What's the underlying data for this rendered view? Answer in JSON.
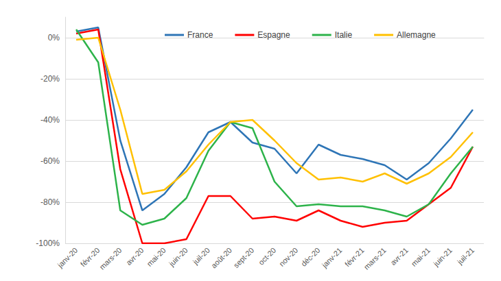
{
  "chart_data": {
    "type": "line",
    "categories": [
      "janv-20",
      "févr-20",
      "mars-20",
      "avr-20",
      "mai-20",
      "juin-20",
      "juil-20",
      "août-20",
      "sept-20",
      "oct-20",
      "nov-20",
      "déc-20",
      "janv-21",
      "févr-21",
      "mars-21",
      "avr-21",
      "mai-21",
      "juin-21",
      "juil-21"
    ],
    "series": [
      {
        "name": "France",
        "color": "#2e75b6",
        "values": [
          3,
          5,
          -50,
          -84,
          -76,
          -63,
          -46,
          -41,
          -51,
          -54,
          -66,
          -52,
          -57,
          -59,
          -62,
          -69,
          -61,
          -49,
          -35
        ]
      },
      {
        "name": "Espagne",
        "color": "#ff0000",
        "values": [
          2,
          4,
          -64,
          -100,
          -100,
          -98,
          -77,
          -77,
          -88,
          -87,
          -89,
          -84,
          -89,
          -92,
          -90,
          -89,
          -81,
          -73,
          -53
        ]
      },
      {
        "name": "Italie",
        "color": "#2db34a",
        "values": [
          4,
          -12,
          -84,
          -91,
          -88,
          -78,
          -55,
          -41,
          -44,
          -70,
          -82,
          -81,
          -82,
          -82,
          -84,
          -87,
          -81,
          -66,
          -53
        ]
      },
      {
        "name": "Allemagne",
        "color": "#ffc000",
        "values": [
          -1,
          0,
          -35,
          -76,
          -74,
          -65,
          -52,
          -41,
          -40,
          -50,
          -61,
          -69,
          -68,
          -70,
          -66,
          -71,
          -66,
          -58,
          -46
        ]
      }
    ],
    "ylim": [
      -100,
      10
    ],
    "yticks": [
      {
        "value": -100,
        "label": "-100%"
      },
      {
        "value": -80,
        "label": "-80%"
      },
      {
        "value": -60,
        "label": "-60%"
      },
      {
        "value": -40,
        "label": "-40%"
      },
      {
        "value": -20,
        "label": "-20%"
      },
      {
        "value": 0,
        "label": "0%"
      }
    ],
    "grid": true,
    "legend": "top",
    "marker": "none",
    "line_style": "solid"
  }
}
